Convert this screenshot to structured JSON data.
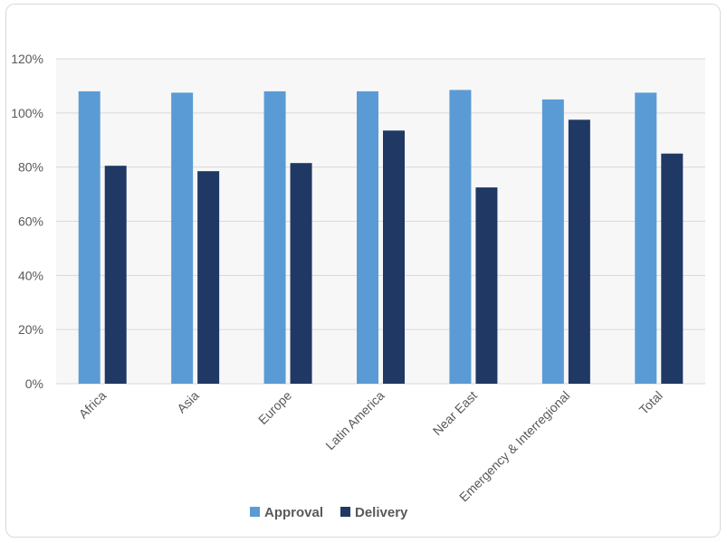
{
  "chart_data": {
    "type": "bar",
    "categories": [
      "Africa",
      "Asia",
      "Europe",
      "Latin America",
      "Near East",
      "Emergency & Interregional",
      "Total"
    ],
    "series": [
      {
        "name": "Approval",
        "values": [
          108,
          107.5,
          108,
          108,
          108.5,
          105,
          107.5
        ],
        "color": "#5B9BD5"
      },
      {
        "name": "Delivery",
        "values": [
          80.5,
          78.5,
          81.5,
          93.5,
          72.5,
          97.5,
          85
        ],
        "color": "#203864"
      }
    ],
    "y_ticks": [
      "0%",
      "20%",
      "40%",
      "60%",
      "80%",
      "100%",
      "120%"
    ],
    "ylim": [
      0,
      120
    ],
    "grid": true,
    "legend_position": "bottom",
    "plot_background": "#f7f7f7",
    "gridline_color": "#d9d9d9"
  }
}
